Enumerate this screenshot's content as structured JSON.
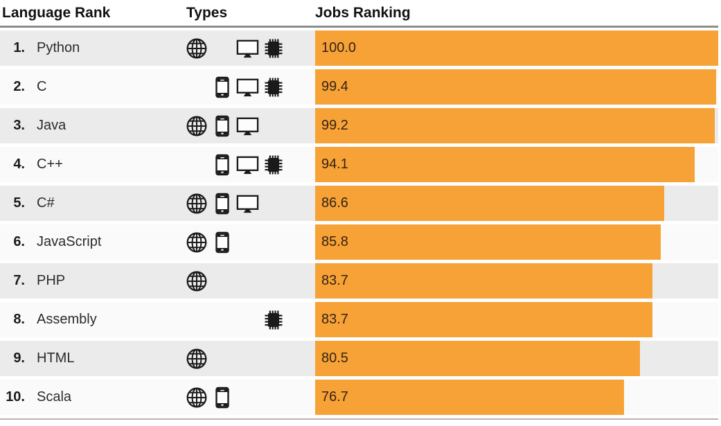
{
  "header": {
    "language_rank": "Language Rank",
    "types": "Types",
    "jobs_ranking": "Jobs Ranking"
  },
  "colors": {
    "bar_orange": "#f7a237",
    "row_gray": "#ebebeb",
    "row_white": "#fafafa",
    "header_rule": "#8c8c8c",
    "bottom_rule": "#b5b5b5",
    "icon_black": "#1a1a1a"
  },
  "type_legend": {
    "web": "globe-icon",
    "mobile": "phone-icon",
    "enterprise": "monitor-icon",
    "embedded": "chip-icon"
  },
  "rows": [
    {
      "rank": "1.",
      "language": "Python",
      "types": [
        "web",
        "enterprise",
        "embedded"
      ],
      "value_label": "100.0",
      "score": 100.0
    },
    {
      "rank": "2.",
      "language": "C",
      "types": [
        "mobile",
        "enterprise",
        "embedded"
      ],
      "value_label": "99.4",
      "score": 99.4
    },
    {
      "rank": "3.",
      "language": "Java",
      "types": [
        "web",
        "mobile",
        "enterprise"
      ],
      "value_label": "99.2",
      "score": 99.2
    },
    {
      "rank": "4.",
      "language": "C++",
      "types": [
        "mobile",
        "enterprise",
        "embedded"
      ],
      "value_label": "94.1",
      "score": 94.1
    },
    {
      "rank": "5.",
      "language": "C#",
      "types": [
        "web",
        "mobile",
        "enterprise"
      ],
      "value_label": "86.6",
      "score": 86.6
    },
    {
      "rank": "6.",
      "language": "JavaScript",
      "types": [
        "web",
        "mobile"
      ],
      "value_label": "85.8",
      "score": 85.8
    },
    {
      "rank": "7.",
      "language": "PHP",
      "types": [
        "web"
      ],
      "value_label": "83.7",
      "score": 83.7
    },
    {
      "rank": "8.",
      "language": "Assembly",
      "types": [
        "embedded"
      ],
      "value_label": "83.7",
      "score": 83.7
    },
    {
      "rank": "9.",
      "language": "HTML",
      "types": [
        "web"
      ],
      "value_label": "80.5",
      "score": 80.5
    },
    {
      "rank": "10.",
      "language": "Scala",
      "types": [
        "web",
        "mobile"
      ],
      "value_label": "76.7",
      "score": 76.7
    }
  ],
  "chart_data": {
    "type": "bar",
    "orientation": "horizontal",
    "title": "Jobs Ranking",
    "categories": [
      "Python",
      "C",
      "Java",
      "C++",
      "C#",
      "JavaScript",
      "PHP",
      "Assembly",
      "HTML",
      "Scala"
    ],
    "values": [
      100.0,
      99.4,
      99.2,
      94.1,
      86.6,
      85.8,
      83.7,
      83.7,
      80.5,
      76.7
    ],
    "value_labels": [
      "100.0",
      "99.4",
      "99.2",
      "94.1",
      "86.6",
      "85.8",
      "83.7",
      "83.7",
      "80.5",
      "76.7"
    ],
    "xlim": [
      0,
      100
    ],
    "grid": false,
    "legend": false,
    "bar_color": "#f7a237",
    "series": [
      {
        "name": "Jobs Ranking",
        "values": [
          100.0,
          99.4,
          99.2,
          94.1,
          86.6,
          85.8,
          83.7,
          83.7,
          80.5,
          76.7
        ]
      }
    ]
  }
}
